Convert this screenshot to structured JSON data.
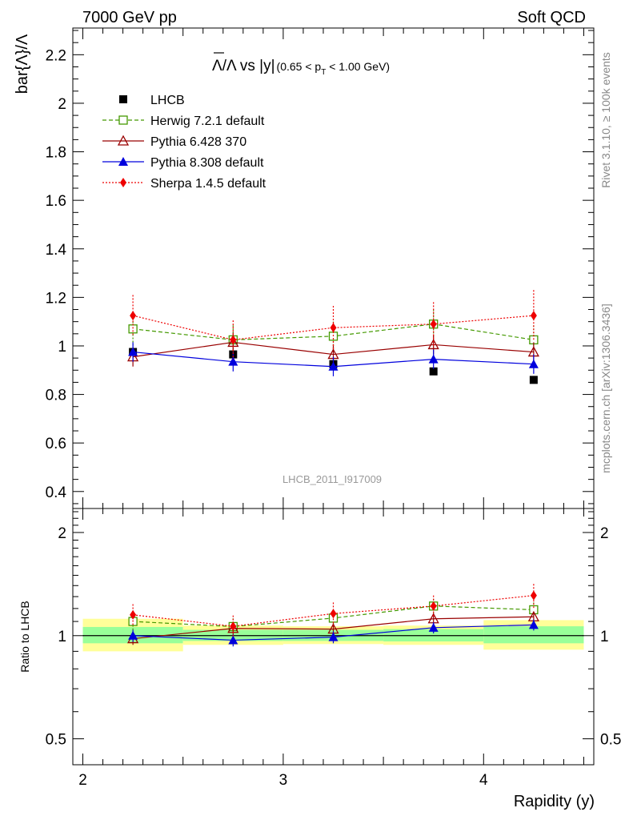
{
  "header": {
    "left": "7000 GeV pp",
    "right": "Soft QCD"
  },
  "side_labels": {
    "rivet": "Rivet 3.1.10, ≥ 100k events",
    "source": "mcplots.cern.ch [arXiv:1306.3436]"
  },
  "watermark": "LHCB_2011_I917009",
  "title_parts": {
    "main": "Λ/Λ vs |y|",
    "sub": "(0.65 < p",
    "sub_index": "T",
    "sub_end": " < 1.00 GeV)"
  },
  "chart_data": [
    {
      "type": "scatter",
      "panel": "main",
      "ylabel": "bar{Λ}/Λ",
      "xlim": [
        1.95,
        4.55
      ],
      "ylim": [
        0.33,
        2.31
      ],
      "yticks": [
        0.4,
        0.6,
        0.8,
        1,
        1.2,
        1.4,
        1.6,
        1.8,
        2,
        2.2
      ],
      "ytick_labels": [
        "0.4",
        "0.6",
        "0.8",
        "1",
        "1.2",
        "1.4",
        "1.6",
        "1.8",
        "2",
        "2.2"
      ],
      "x": [
        2.25,
        2.75,
        3.25,
        3.75,
        4.25
      ],
      "series": [
        {
          "name": "LHCB",
          "color": "#000000",
          "marker": "square-filled",
          "line": "none",
          "values": [
            0.975,
            0.965,
            0.925,
            0.895,
            0.86
          ],
          "errors": [
            0.012,
            0.012,
            0.012,
            0.012,
            0.012
          ]
        },
        {
          "name": "Herwig 7.2.1 default",
          "color": "#449900",
          "marker": "square-open",
          "line": "dashed",
          "values": [
            1.07,
            1.025,
            1.04,
            1.09,
            1.025
          ],
          "errors": [
            0.07,
            0.06,
            0.06,
            0.06,
            0.06
          ]
        },
        {
          "name": "Pythia 6.428 370",
          "color": "#990000",
          "marker": "triangle-open",
          "line": "solid",
          "values": [
            0.955,
            1.015,
            0.965,
            1.005,
            0.975
          ],
          "errors": [
            0.04,
            0.04,
            0.04,
            0.04,
            0.04
          ]
        },
        {
          "name": "Pythia 8.308 default",
          "color": "#0000dd",
          "marker": "triangle-filled",
          "line": "solid",
          "values": [
            0.975,
            0.935,
            0.915,
            0.945,
            0.925
          ],
          "errors": [
            0.04,
            0.04,
            0.04,
            0.04,
            0.04
          ]
        },
        {
          "name": "Sherpa 1.4.5 default",
          "color": "#ee0000",
          "marker": "diamond-filled",
          "line": "dotted",
          "values": [
            1.125,
            1.025,
            1.075,
            1.09,
            1.125
          ],
          "errors": [
            0.085,
            0.08,
            0.09,
            0.09,
            0.105
          ]
        }
      ]
    },
    {
      "type": "scatter",
      "panel": "ratio",
      "ylabel": "Ratio to LHCB",
      "xlabel": "Rapidity (y)",
      "yscale": "log",
      "ylim": [
        0.42,
        2.35
      ],
      "yticks": [
        0.5,
        1,
        2
      ],
      "ytick_labels": [
        "0.5",
        "1",
        "2"
      ],
      "xticks": [
        2,
        3,
        4
      ],
      "xtick_labels": [
        "2",
        "3",
        "4"
      ],
      "x": [
        2.25,
        2.75,
        3.25,
        3.75,
        4.25
      ],
      "bands": [
        {
          "x_range": [
            2.0,
            2.5
          ],
          "yellow": [
            0.9,
            1.12
          ],
          "green": [
            0.95,
            1.06
          ]
        },
        {
          "x_range": [
            2.5,
            3.0
          ],
          "yellow": [
            0.94,
            1.07
          ],
          "green": [
            0.965,
            1.04
          ]
        },
        {
          "x_range": [
            3.0,
            3.5
          ],
          "yellow": [
            0.945,
            1.065
          ],
          "green": [
            0.965,
            1.04
          ]
        },
        {
          "x_range": [
            3.5,
            4.0
          ],
          "yellow": [
            0.94,
            1.07
          ],
          "green": [
            0.962,
            1.045
          ]
        },
        {
          "x_range": [
            4.0,
            4.5
          ],
          "yellow": [
            0.91,
            1.11
          ],
          "green": [
            0.95,
            1.065
          ]
        }
      ],
      "series": [
        {
          "name": "Herwig 7.2.1 default",
          "color": "#449900",
          "marker": "square-open",
          "line": "dashed",
          "values": [
            1.1,
            1.063,
            1.125,
            1.22,
            1.19
          ],
          "errors": [
            0.07,
            0.06,
            0.06,
            0.06,
            0.06
          ]
        },
        {
          "name": "Pythia 6.428 370",
          "color": "#990000",
          "marker": "triangle-open",
          "line": "solid",
          "values": [
            0.98,
            1.05,
            1.045,
            1.12,
            1.135
          ],
          "errors": [
            0.04,
            0.04,
            0.04,
            0.04,
            0.04
          ]
        },
        {
          "name": "Pythia 8.308 default",
          "color": "#0000dd",
          "marker": "triangle-filled",
          "line": "solid",
          "values": [
            1.0,
            0.97,
            0.99,
            1.055,
            1.075
          ],
          "errors": [
            0.04,
            0.04,
            0.04,
            0.04,
            0.04
          ]
        },
        {
          "name": "Sherpa 1.4.5 default",
          "color": "#ee0000",
          "marker": "diamond-filled",
          "line": "dotted",
          "values": [
            1.15,
            1.065,
            1.16,
            1.22,
            1.31
          ],
          "errors": [
            0.085,
            0.08,
            0.09,
            0.09,
            0.105
          ]
        }
      ]
    }
  ]
}
